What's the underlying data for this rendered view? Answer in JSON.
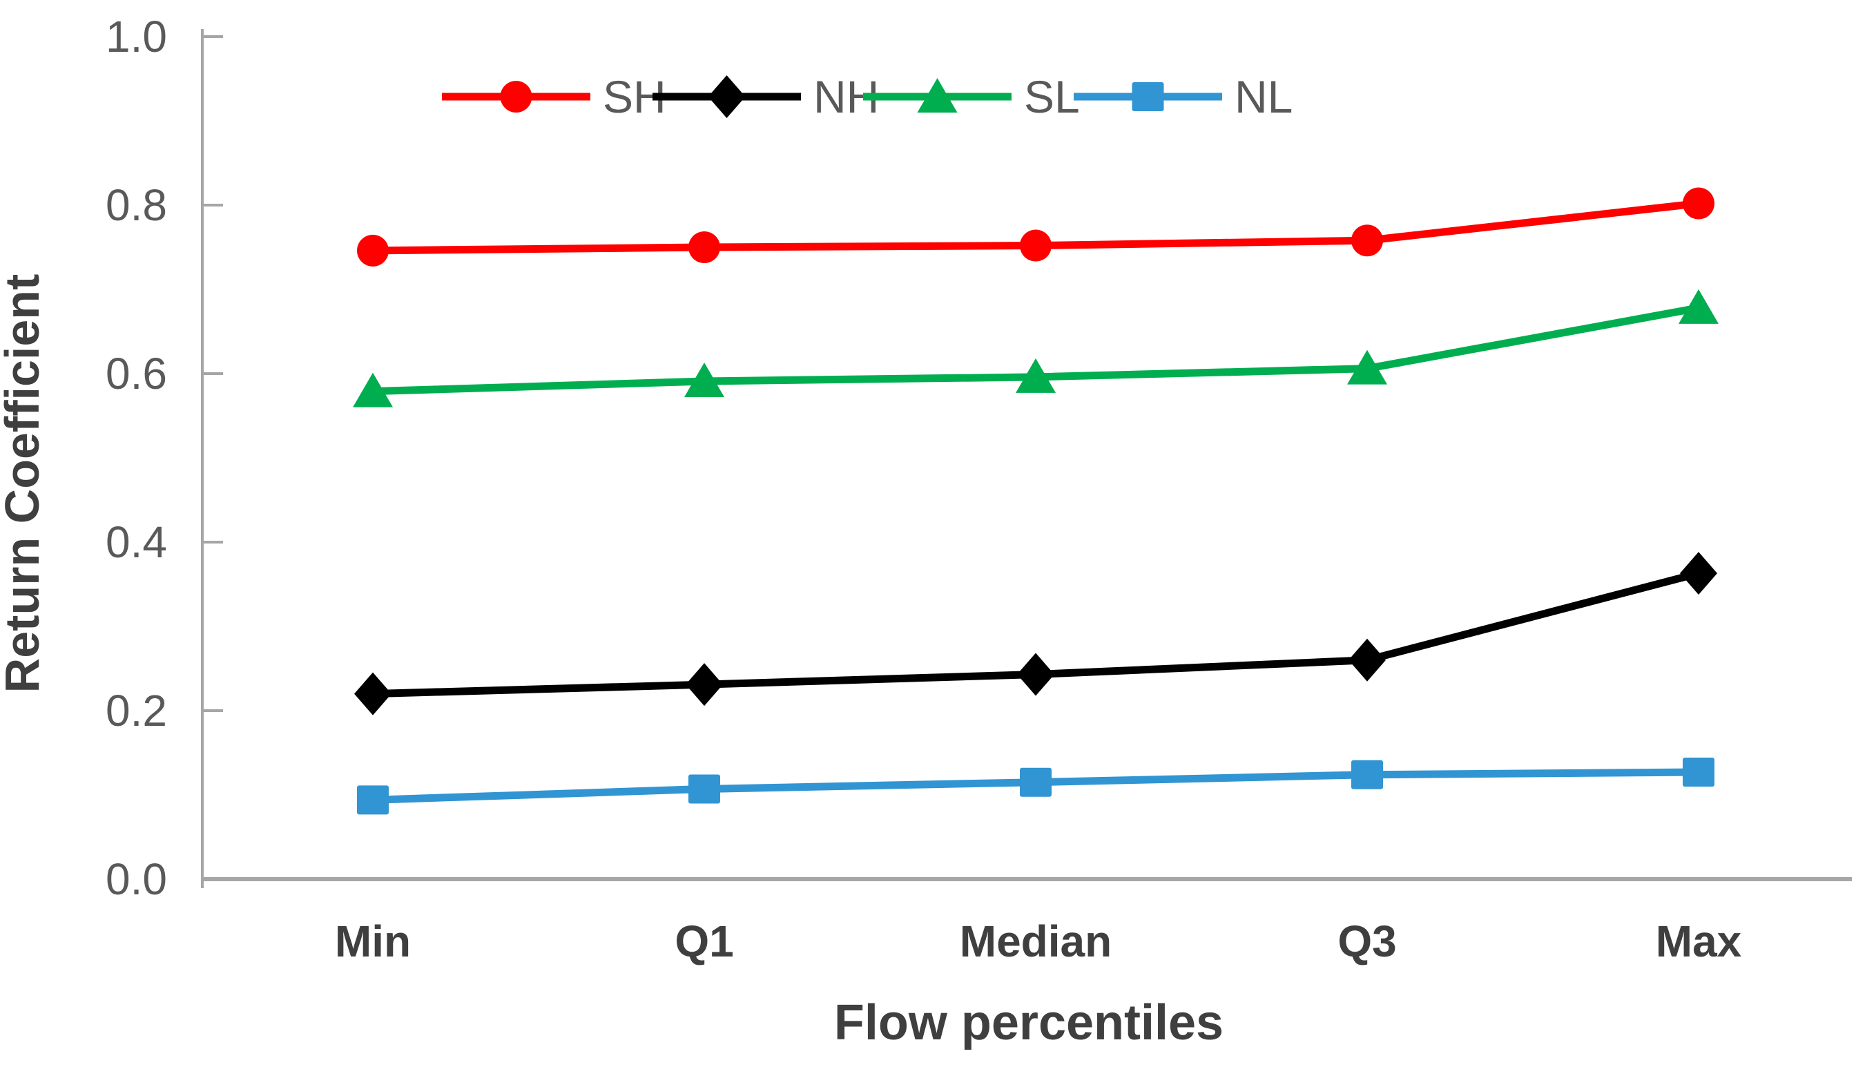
{
  "chart_data": {
    "type": "line",
    "title": "",
    "categories": [
      "Min",
      "Q1",
      "Median",
      "Q3",
      "Max"
    ],
    "series": [
      {
        "name": "SH",
        "marker": "circle",
        "color": "#FE0000",
        "values": [
          0.746,
          0.75,
          0.752,
          0.758,
          0.802
        ]
      },
      {
        "name": "NH",
        "marker": "diamond",
        "color": "#000000",
        "values": [
          0.22,
          0.231,
          0.243,
          0.26,
          0.363
        ]
      },
      {
        "name": "SL",
        "marker": "triangle",
        "color": "#00AE50",
        "values": [
          0.579,
          0.591,
          0.596,
          0.606,
          0.678
        ]
      },
      {
        "name": "NL",
        "marker": "square",
        "color": "#3095D2",
        "values": [
          0.094,
          0.107,
          0.115,
          0.124,
          0.127
        ]
      }
    ],
    "xlabel": "Flow percentiles",
    "ylabel": "Return Coefficient",
    "ylim": [
      0.0,
      1.0
    ],
    "y_ticks": [
      0.2,
      0.4,
      0.6,
      0.8,
      1.0
    ],
    "y_tick_labels": [
      "0.2",
      "0.4",
      "0.6",
      "0.8",
      "1.0"
    ],
    "y_origin_label": "0.0",
    "grid": false,
    "legend_position": "top-center"
  },
  "styles": {
    "background": "#FFFFFF",
    "axis_line_color": "#A6A6A6",
    "tick_label_color": "#595959",
    "legend_label_color": "#595959",
    "axis_title_color": "#3F3F3F",
    "category_label_color": "#3F3F3F"
  }
}
